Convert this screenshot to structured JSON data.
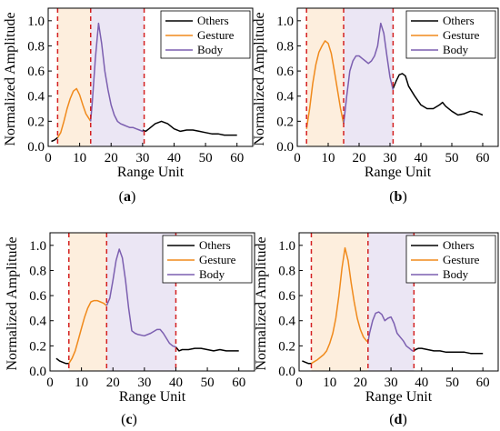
{
  "colors": {
    "others": "#000000",
    "gesture": "#f08a1c",
    "body": "#7c5fb0",
    "gesture_fill": "#fdeedd",
    "body_fill": "#ebe6f4",
    "boundary": "#d42020"
  },
  "chart_data": [
    {
      "type": "line",
      "caption": "(a)",
      "xlabel": "Range Unit",
      "ylabel": "Normalized Amplitude",
      "xlim": [
        0,
        65
      ],
      "ylim": [
        0,
        1.1
      ],
      "xticks": [
        0,
        10,
        20,
        30,
        40,
        50,
        60
      ],
      "yticks": [
        0.0,
        0.2,
        0.4,
        0.6,
        0.8,
        1.0
      ],
      "legend_position": "top-right",
      "regions": {
        "gesture": [
          3,
          13.5
        ],
        "body": [
          13.5,
          30.5
        ]
      },
      "boundaries": [
        3,
        13.5,
        30.5
      ],
      "series": [
        {
          "name": "Others",
          "x": [
            1,
            2,
            3,
            30,
            31,
            32,
            34,
            36,
            38,
            40,
            42,
            44,
            46,
            48,
            50,
            52,
            54,
            56,
            58,
            60
          ],
          "y": [
            0.04,
            0.05,
            0.07,
            0.13,
            0.12,
            0.14,
            0.18,
            0.2,
            0.18,
            0.14,
            0.12,
            0.13,
            0.13,
            0.12,
            0.11,
            0.1,
            0.1,
            0.09,
            0.09,
            0.09
          ]
        },
        {
          "name": "Gesture",
          "x": [
            3,
            4,
            5,
            6,
            7,
            8,
            9,
            10,
            11,
            12,
            13,
            13.5
          ],
          "y": [
            0.07,
            0.11,
            0.2,
            0.3,
            0.38,
            0.44,
            0.46,
            0.41,
            0.33,
            0.26,
            0.22,
            0.2
          ]
        },
        {
          "name": "Body",
          "x": [
            13.5,
            14,
            15,
            16,
            17,
            18,
            19,
            20,
            21,
            22,
            23,
            24,
            25,
            26,
            27,
            28,
            29,
            30,
            30.5
          ],
          "y": [
            0.2,
            0.35,
            0.7,
            0.98,
            0.82,
            0.6,
            0.45,
            0.33,
            0.25,
            0.2,
            0.18,
            0.17,
            0.16,
            0.15,
            0.15,
            0.14,
            0.13,
            0.12,
            0.12
          ]
        }
      ]
    },
    {
      "type": "line",
      "caption": "(b)",
      "xlabel": "Range Unit",
      "ylabel": "Normalized Amplitude",
      "xlim": [
        0,
        65
      ],
      "ylim": [
        0,
        1.1
      ],
      "xticks": [
        0,
        10,
        20,
        30,
        40,
        50,
        60
      ],
      "yticks": [
        0.0,
        0.2,
        0.4,
        0.6,
        0.8,
        1.0
      ],
      "legend_position": "top-right",
      "regions": {
        "gesture": [
          3,
          15
        ],
        "body": [
          15,
          31
        ]
      },
      "boundaries": [
        3,
        15,
        31
      ],
      "series": [
        {
          "name": "Others",
          "x": [
            31,
            32,
            33,
            34,
            35,
            36,
            38,
            40,
            42,
            44,
            46,
            47,
            48,
            50,
            52,
            54,
            56,
            58,
            60
          ],
          "y": [
            0.46,
            0.52,
            0.57,
            0.58,
            0.56,
            0.48,
            0.4,
            0.33,
            0.3,
            0.3,
            0.33,
            0.35,
            0.32,
            0.28,
            0.25,
            0.26,
            0.28,
            0.27,
            0.25
          ]
        },
        {
          "name": "Gesture",
          "x": [
            3,
            4,
            5,
            6,
            7,
            8,
            9,
            10,
            11,
            12,
            13,
            14,
            15
          ],
          "y": [
            0.14,
            0.3,
            0.5,
            0.65,
            0.75,
            0.8,
            0.84,
            0.82,
            0.74,
            0.6,
            0.45,
            0.3,
            0.18
          ]
        },
        {
          "name": "Body",
          "x": [
            15,
            16,
            17,
            18,
            19,
            20,
            21,
            22,
            23,
            24,
            25,
            26,
            27,
            28,
            29,
            30,
            31
          ],
          "y": [
            0.18,
            0.4,
            0.6,
            0.68,
            0.72,
            0.72,
            0.7,
            0.68,
            0.66,
            0.68,
            0.72,
            0.8,
            0.98,
            0.9,
            0.72,
            0.55,
            0.45
          ]
        }
      ]
    },
    {
      "type": "line",
      "caption": "(c)",
      "xlabel": "Range Unit",
      "ylabel": "Normalized Amplitude",
      "xlim": [
        0,
        65
      ],
      "ylim": [
        0,
        1.1
      ],
      "xticks": [
        0,
        10,
        20,
        30,
        40,
        50,
        60
      ],
      "yticks": [
        0.0,
        0.2,
        0.4,
        0.6,
        0.8,
        1.0
      ],
      "legend_position": "top-right",
      "regions": {
        "gesture": [
          6,
          18
        ],
        "body": [
          18,
          40
        ]
      },
      "boundaries": [
        6,
        18,
        40
      ],
      "series": [
        {
          "name": "Others",
          "x": [
            2,
            3,
            4,
            5,
            6,
            40,
            41,
            42,
            44,
            46,
            48,
            50,
            52,
            54,
            56,
            58,
            60
          ],
          "y": [
            0.1,
            0.08,
            0.07,
            0.06,
            0.06,
            0.19,
            0.16,
            0.17,
            0.17,
            0.18,
            0.18,
            0.17,
            0.16,
            0.17,
            0.16,
            0.16,
            0.16
          ]
        },
        {
          "name": "Gesture",
          "x": [
            6,
            7,
            8,
            9,
            10,
            11,
            12,
            13,
            14,
            15,
            16,
            17,
            18
          ],
          "y": [
            0.06,
            0.1,
            0.16,
            0.25,
            0.34,
            0.43,
            0.5,
            0.55,
            0.56,
            0.56,
            0.55,
            0.54,
            0.52
          ]
        },
        {
          "name": "Body",
          "x": [
            18,
            19,
            20,
            21,
            22,
            23,
            24,
            25,
            26,
            27,
            28,
            30,
            32,
            34,
            35,
            36,
            37,
            38,
            39,
            40
          ],
          "y": [
            0.52,
            0.58,
            0.72,
            0.88,
            0.97,
            0.9,
            0.72,
            0.5,
            0.32,
            0.3,
            0.29,
            0.28,
            0.3,
            0.33,
            0.33,
            0.3,
            0.26,
            0.22,
            0.2,
            0.19
          ]
        }
      ]
    },
    {
      "type": "line",
      "caption": "(d)",
      "xlabel": "Range Unit",
      "ylabel": "Normalized Amplitude",
      "xlim": [
        0,
        65
      ],
      "ylim": [
        0,
        1.1
      ],
      "xticks": [
        0,
        10,
        20,
        30,
        40,
        50,
        60
      ],
      "yticks": [
        0.0,
        0.2,
        0.4,
        0.6,
        0.8,
        1.0
      ],
      "legend_position": "top-right",
      "regions": {
        "gesture": [
          4,
          22.5
        ],
        "body": [
          22.5,
          37.5
        ]
      },
      "boundaries": [
        4,
        22.5,
        37.5
      ],
      "series": [
        {
          "name": "Others",
          "x": [
            1,
            2,
            3,
            4,
            37.5,
            38,
            39,
            40,
            42,
            44,
            46,
            48,
            50,
            52,
            54,
            56,
            58,
            60
          ],
          "y": [
            0.08,
            0.07,
            0.06,
            0.06,
            0.16,
            0.17,
            0.18,
            0.18,
            0.17,
            0.16,
            0.16,
            0.15,
            0.15,
            0.15,
            0.15,
            0.14,
            0.14,
            0.14
          ]
        },
        {
          "name": "Gesture",
          "x": [
            4,
            6,
            8,
            9,
            10,
            11,
            12,
            13,
            14,
            15,
            16,
            17,
            18,
            19,
            20,
            21,
            22,
            22.5
          ],
          "y": [
            0.06,
            0.09,
            0.13,
            0.16,
            0.22,
            0.3,
            0.42,
            0.6,
            0.82,
            0.98,
            0.88,
            0.7,
            0.55,
            0.42,
            0.33,
            0.27,
            0.24,
            0.23
          ]
        },
        {
          "name": "Body",
          "x": [
            22.5,
            23,
            24,
            25,
            26,
            27,
            28,
            29,
            30,
            31,
            32,
            33,
            34,
            35,
            36,
            37,
            37.5
          ],
          "y": [
            0.23,
            0.3,
            0.4,
            0.46,
            0.47,
            0.45,
            0.4,
            0.42,
            0.43,
            0.38,
            0.3,
            0.27,
            0.24,
            0.2,
            0.18,
            0.16,
            0.16
          ]
        }
      ]
    }
  ]
}
